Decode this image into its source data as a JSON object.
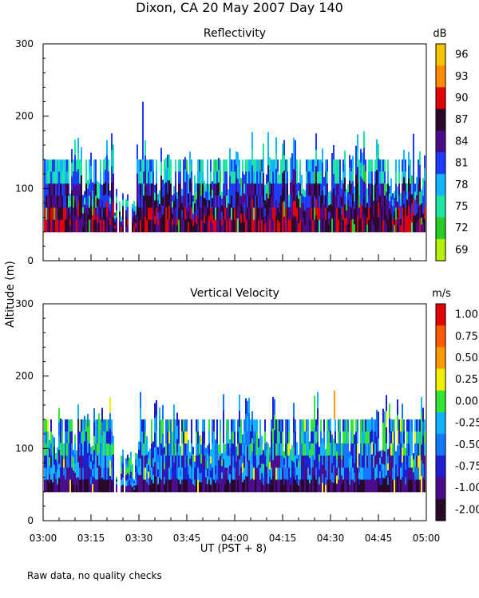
{
  "title": "Dixon, CA 20 May 2007  Day 140",
  "ylabel": "Altitude (m)",
  "xlabel": "UT  (PST + 8)",
  "footnote": "Raw data, no quality checks",
  "chart_data": [
    {
      "type": "heatmap",
      "title": "Reflectivity",
      "colorbar_title": "dB",
      "colorbar_labels": [
        "96",
        "93",
        "90",
        "87",
        "84",
        "81",
        "78",
        "75",
        "72",
        "69"
      ],
      "colorbar_colors": [
        "#f5c400",
        "#ff8c00",
        "#e60000",
        "#2a0a2a",
        "#4b0d8c",
        "#1e3cff",
        "#14b4ff",
        "#1ee6a0",
        "#2acc2a",
        "#b4f000"
      ],
      "x_ticks": [
        "03:00",
        "03:15",
        "03:30",
        "03:45",
        "04:00",
        "04:15",
        "04:30",
        "04:45",
        "05:00"
      ],
      "xlim": [
        "03:00",
        "05:00"
      ],
      "y_ticks": [
        "0",
        "100",
        "200",
        "300"
      ],
      "ylim": [
        0,
        300
      ],
      "data_range_altitude_m": [
        40,
        140
      ],
      "peak_echo_altitude_m": 220,
      "data_gap_utc": [
        "03:22",
        "03:29"
      ]
    },
    {
      "type": "heatmap",
      "title": "Vertical Velocity",
      "colorbar_title": "m/s",
      "colorbar_labels": [
        "1.00",
        "0.75",
        "0.50",
        "0.25",
        "0.00",
        "-0.25",
        "-0.50",
        "-0.75",
        "-1.00",
        "-2.00"
      ],
      "colorbar_colors": [
        "#e60000",
        "#ff5a00",
        "#ff9b00",
        "#f0f000",
        "#32e632",
        "#12b4ff",
        "#1478ff",
        "#1e1ed2",
        "#4b0d8c",
        "#280a28"
      ],
      "x_ticks": [
        "03:00",
        "03:15",
        "03:30",
        "03:45",
        "04:00",
        "04:15",
        "04:30",
        "04:45",
        "05:00"
      ],
      "xlim": [
        "03:00",
        "05:00"
      ],
      "y_ticks": [
        "0",
        "100",
        "200",
        "300"
      ],
      "ylim": [
        0,
        300
      ],
      "data_range_altitude_m": [
        40,
        140
      ],
      "peak_echo_altitude_m": 180,
      "data_gap_utc": [
        "03:22",
        "03:29"
      ]
    }
  ]
}
